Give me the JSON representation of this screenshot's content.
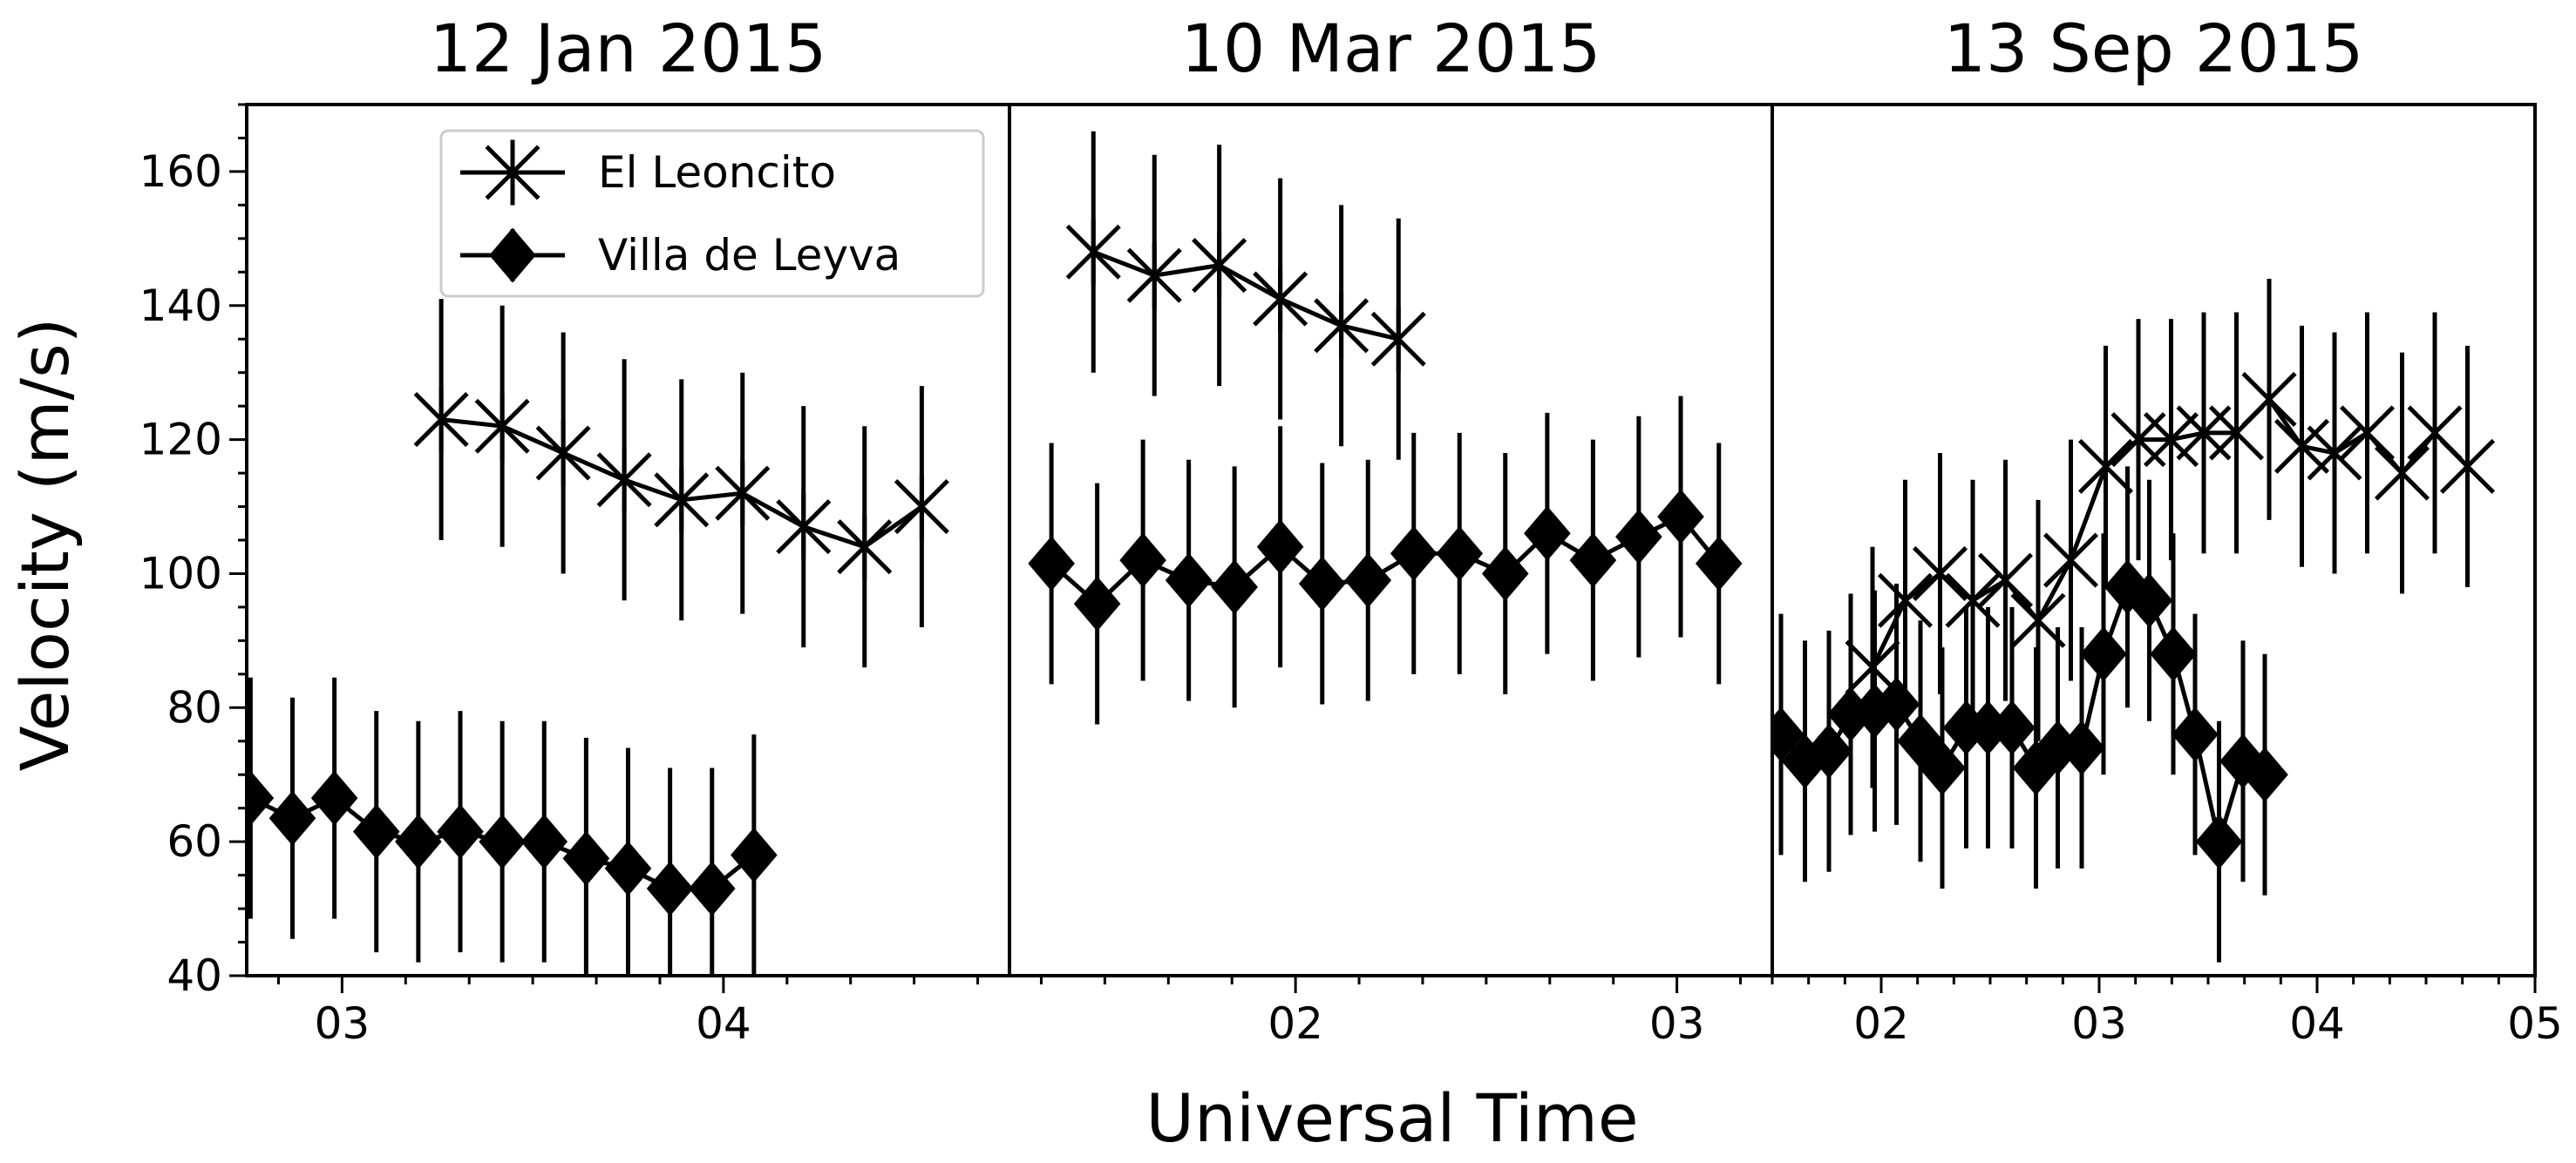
{
  "figure": {
    "ylabel": "Velocity (m/s)",
    "xlabel": "Universal Time",
    "legend": [
      {
        "name": "El Leoncito",
        "marker": "asterisk"
      },
      {
        "name": "Villa de Leyva",
        "marker": "diamond"
      }
    ],
    "legend_position": "top-right of first panel",
    "color": "#000000"
  },
  "chart_data": [
    {
      "type": "line",
      "title": "12 Jan 2015",
      "xlabel": "Universal Time",
      "ylabel": "Velocity (m/s)",
      "xlim": [
        2.75,
        4.75
      ],
      "ylim": [
        40,
        170
      ],
      "x_ticks": [
        3,
        4
      ],
      "x_tick_labels": [
        "03",
        "04"
      ],
      "y_ticks": [
        40,
        60,
        80,
        100,
        120,
        140,
        160
      ],
      "y_tick_labels": [
        "40",
        "60",
        "80",
        "100",
        "120",
        "140",
        "160"
      ],
      "series": [
        {
          "name": "El Leoncito",
          "marker": "asterisk",
          "x": [
            3.26,
            3.42,
            3.58,
            3.74,
            3.89,
            4.05,
            4.21,
            4.37,
            4.52
          ],
          "y": [
            123,
            122,
            118,
            114,
            111,
            112,
            107,
            104,
            110
          ],
          "err": [
            18,
            18,
            18,
            18,
            18,
            18,
            18,
            18,
            18
          ]
        },
        {
          "name": "Villa de Leyva",
          "marker": "diamond",
          "x": [
            2.76,
            2.87,
            2.98,
            3.09,
            3.2,
            3.31,
            3.42,
            3.53,
            3.64,
            3.75,
            3.86,
            3.97,
            4.08
          ],
          "y": [
            66.5,
            63.5,
            66.5,
            61.5,
            60,
            61.5,
            60,
            60,
            57.5,
            56,
            53,
            53,
            58
          ],
          "err": [
            18,
            18,
            18,
            18,
            18,
            18,
            18,
            18,
            18,
            18,
            18,
            18,
            18
          ]
        }
      ]
    },
    {
      "type": "line",
      "title": "10 Mar 2015",
      "xlabel": "Universal Time",
      "ylabel": "Velocity (m/s)",
      "xlim": [
        1.25,
        3.25
      ],
      "ylim": [
        40,
        170
      ],
      "x_ticks": [
        2,
        3
      ],
      "x_tick_labels": [
        "02",
        "03"
      ],
      "series": [
        {
          "name": "El Leoncito",
          "marker": "asterisk",
          "x": [
            1.47,
            1.63,
            1.8,
            1.96,
            2.12,
            2.27
          ],
          "y": [
            148,
            144.5,
            146,
            141,
            137,
            135
          ],
          "err": [
            18,
            18,
            18,
            18,
            18,
            18
          ]
        },
        {
          "name": "Villa de Leyva",
          "marker": "diamond",
          "x": [
            1.36,
            1.48,
            1.6,
            1.72,
            1.84,
            1.96,
            2.07,
            2.19,
            2.31,
            2.43,
            2.55,
            2.66,
            2.78,
            2.9,
            3.01,
            3.11
          ],
          "y": [
            101.5,
            95.5,
            102,
            99,
            98,
            104,
            98.5,
            99,
            103,
            103,
            100,
            106,
            102,
            105.5,
            108.5,
            101.5
          ],
          "err": [
            18,
            18,
            18,
            18,
            18,
            18,
            18,
            18,
            18,
            18,
            18,
            18,
            18,
            18,
            18,
            18
          ]
        }
      ]
    },
    {
      "type": "line",
      "title": "13 Sep 2015",
      "xlabel": "Universal Time",
      "ylabel": "Velocity (m/s)",
      "xlim": [
        1.5,
        5.0
      ],
      "ylim": [
        40,
        170
      ],
      "x_ticks": [
        2,
        3,
        4,
        5
      ],
      "x_tick_labels": [
        "02",
        "03",
        "04",
        "05"
      ],
      "series": [
        {
          "name": "El Leoncito",
          "marker": "asterisk",
          "x": [
            1.96,
            2.11,
            2.27,
            2.42,
            2.57,
            2.72,
            2.87,
            3.03,
            3.18,
            3.33,
            3.48,
            3.63,
            3.78,
            3.93,
            4.08,
            4.23,
            4.39,
            4.54,
            4.69
          ],
          "y": [
            86,
            96,
            100,
            96,
            99,
            93,
            102,
            116,
            120,
            120,
            121,
            121,
            126,
            119,
            118,
            121,
            115,
            121,
            116
          ],
          "err": [
            18,
            18,
            18,
            18,
            18,
            18,
            18,
            18,
            18,
            18,
            18,
            18,
            18,
            18,
            18,
            18,
            18,
            18,
            18
          ]
        },
        {
          "name": "Villa de Leyva",
          "marker": "diamond",
          "x": [
            1.54,
            1.65,
            1.76,
            1.86,
            1.97,
            2.07,
            2.18,
            2.28,
            2.39,
            2.49,
            2.6,
            2.71,
            2.81,
            2.92,
            3.02,
            3.13,
            3.23,
            3.34,
            3.44,
            3.55,
            3.66,
            3.76
          ],
          "y": [
            76,
            72,
            73.5,
            79,
            79.5,
            80.5,
            75,
            71,
            77,
            77,
            77,
            71,
            74,
            74,
            88,
            98,
            96,
            88,
            76,
            60,
            72,
            70
          ],
          "err": [
            18,
            18,
            18,
            18,
            18,
            18,
            18,
            18,
            18,
            18,
            18,
            18,
            18,
            18,
            18,
            18,
            18,
            18,
            18,
            18,
            18,
            18
          ]
        }
      ]
    }
  ]
}
